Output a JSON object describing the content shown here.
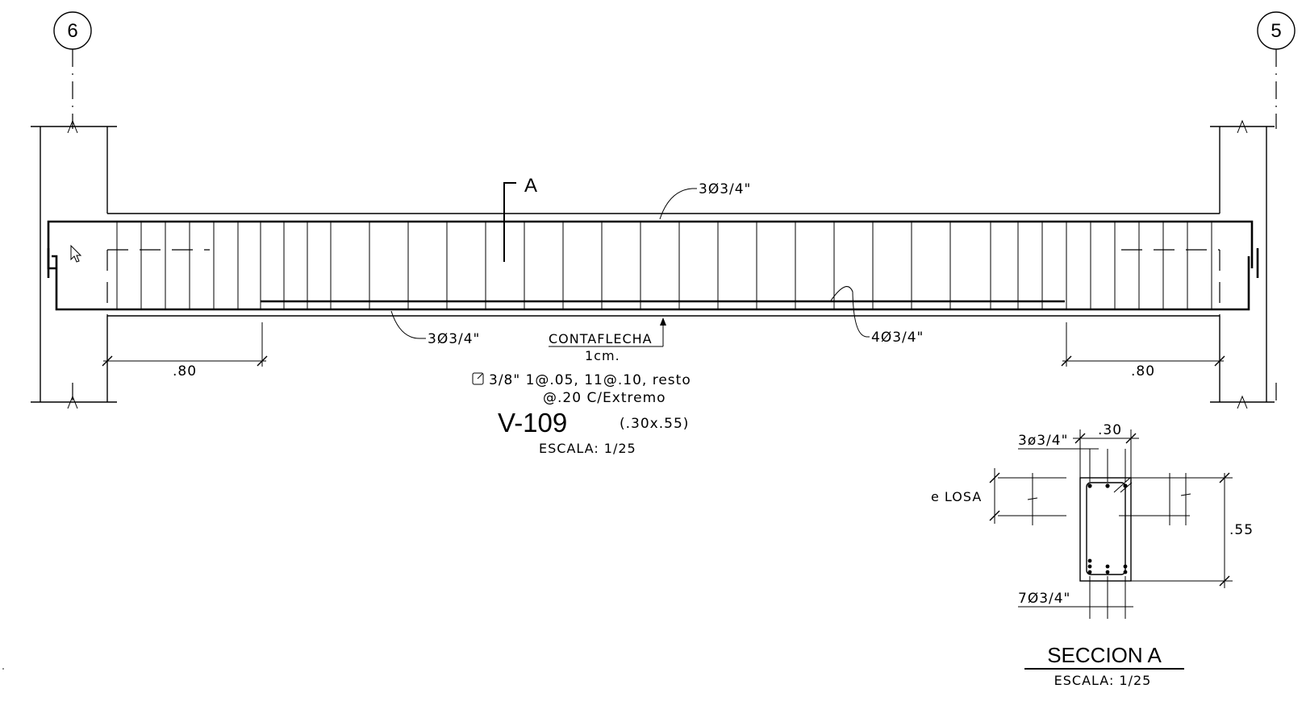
{
  "axes": {
    "left": "6",
    "right": "5"
  },
  "beam": {
    "top_bars": "3Ø3/4\"",
    "bottom_bars": "3Ø3/4\"",
    "extra_bottom_bars": "4Ø3/4\"",
    "left_dim": ".80",
    "right_dim": ".80",
    "camber_label": "CONTAFLECHA",
    "camber_value": "1cm.",
    "section_mark": "A",
    "stirrups_line1": "3/8\"  1@.05,  11@.10,  resto",
    "stirrups_line2": "@.20  C/Extremo",
    "name": "V-109",
    "dims": "(.30x.55)",
    "scale": "ESCALA:  1/25"
  },
  "section": {
    "title": "SECCION A",
    "scale": "ESCALA:  1/25",
    "width_dim": ".30",
    "height_dim": ".55",
    "top_bars": "3ø3/4\"",
    "bottom_bars": "7Ø3/4\"",
    "slab_label": "e  LOSA"
  },
  "icons": [
    "mouse-cursor-icon",
    "stirrup-icon"
  ]
}
